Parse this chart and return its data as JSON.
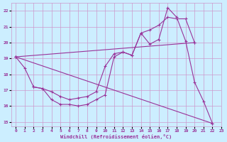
{
  "bg_color": "#cceeff",
  "grid_color": "#cc99cc",
  "line_color": "#993399",
  "xlim": [
    -0.5,
    23
  ],
  "ylim": [
    14.7,
    22.5
  ],
  "xticks": [
    0,
    1,
    2,
    3,
    4,
    5,
    6,
    7,
    8,
    9,
    10,
    11,
    12,
    13,
    14,
    15,
    16,
    17,
    18,
    19,
    20,
    21,
    22,
    23
  ],
  "yticks": [
    15,
    16,
    17,
    18,
    19,
    20,
    21,
    22
  ],
  "xlabel": "Windchill (Refroidissement éolien,°C)",
  "series": [
    {
      "x": [
        0,
        1,
        2,
        3,
        4,
        5,
        6,
        7,
        8,
        9,
        10,
        11,
        12,
        13,
        14,
        15,
        16,
        17,
        18,
        19,
        20,
        21,
        22
      ],
      "y": [
        19.1,
        18.4,
        17.2,
        17.1,
        16.4,
        16.1,
        16.1,
        16.0,
        16.1,
        16.4,
        16.7,
        19.1,
        19.4,
        19.2,
        20.6,
        19.9,
        20.2,
        22.2,
        21.6,
        20.1,
        17.5,
        16.3,
        14.9
      ]
    },
    {
      "x": [
        2,
        3,
        4,
        5,
        6,
        7,
        8,
        9,
        10,
        11,
        12,
        13,
        14,
        15,
        16,
        17,
        18,
        19,
        20
      ],
      "y": [
        17.2,
        17.1,
        16.9,
        16.6,
        16.4,
        16.5,
        16.6,
        16.9,
        18.5,
        19.3,
        19.4,
        19.2,
        20.6,
        20.8,
        21.1,
        21.6,
        21.5,
        21.5,
        20.0
      ]
    },
    {
      "x": [
        0,
        22
      ],
      "y": [
        19.1,
        14.9
      ]
    },
    {
      "x": [
        0,
        20
      ],
      "y": [
        19.1,
        20.0
      ]
    }
  ]
}
